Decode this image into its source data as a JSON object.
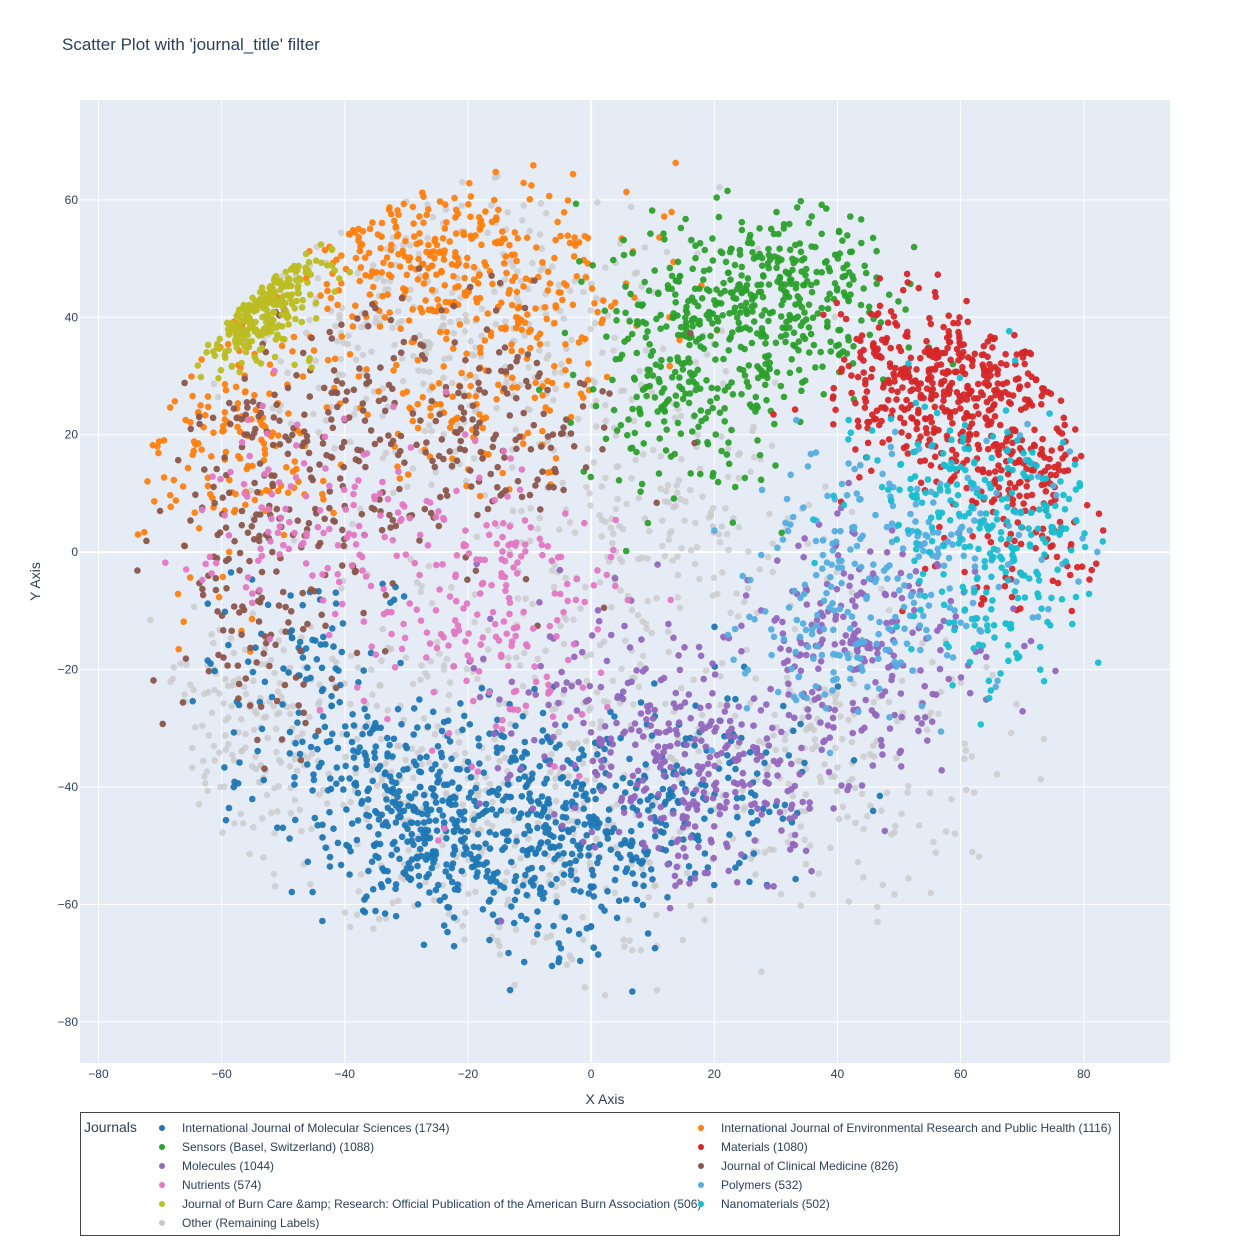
{
  "chart_data": {
    "type": "scatter",
    "title": "Scatter Plot with 'journal_title' filter",
    "xlabel": "X Axis",
    "ylabel": "Y Axis",
    "xlim": [
      -83,
      94
    ],
    "ylim": [
      -87,
      77
    ],
    "x_ticks": [
      -80,
      -60,
      -40,
      -20,
      0,
      20,
      40,
      60,
      80
    ],
    "y_ticks": [
      -80,
      -60,
      -40,
      -20,
      0,
      20,
      40,
      60
    ],
    "grid": true,
    "legend_title": "Journals",
    "legend_position": "bottom",
    "series": [
      {
        "name": "International Journal of Molecular Sciences (1734)",
        "color": "#1f77b4",
        "count": 1734,
        "clusters": [
          [
            -28,
            -45,
            11,
            9,
            0.45
          ],
          [
            -5,
            -48,
            10,
            10,
            0.3
          ],
          [
            15,
            -40,
            12,
            9,
            0.15
          ],
          [
            -45,
            -22,
            8,
            10,
            0.1
          ]
        ]
      },
      {
        "name": "International Journal of Environmental Research and Public Health (1116)",
        "color": "#ff7f0e",
        "count": 1116,
        "clusters": [
          [
            -30,
            52,
            10,
            8,
            0.35
          ],
          [
            -10,
            45,
            12,
            10,
            0.25
          ],
          [
            -58,
            20,
            8,
            12,
            0.25
          ],
          [
            -20,
            25,
            10,
            8,
            0.15
          ]
        ]
      },
      {
        "name": "Sensors (Basel, Switzerland) (1088)",
        "color": "#2ca02c",
        "count": 1088,
        "clusters": [
          [
            25,
            40,
            11,
            9,
            0.6
          ],
          [
            15,
            25,
            8,
            8,
            0.25
          ],
          [
            35,
            48,
            8,
            6,
            0.15
          ]
        ]
      },
      {
        "name": "Materials (1080)",
        "color": "#d62728",
        "count": 1080,
        "clusters": [
          [
            62,
            28,
            8,
            8,
            0.5
          ],
          [
            70,
            10,
            8,
            10,
            0.3
          ],
          [
            50,
            30,
            7,
            7,
            0.2
          ]
        ]
      },
      {
        "name": "Molecules (1044)",
        "color": "#9467bd",
        "count": 1044,
        "clusters": [
          [
            20,
            -35,
            12,
            10,
            0.5
          ],
          [
            45,
            -15,
            10,
            10,
            0.35
          ],
          [
            0,
            -25,
            10,
            10,
            0.15
          ]
        ]
      },
      {
        "name": "Journal of Clinical Medicine (826)",
        "color": "#8c564b",
        "count": 826,
        "clusters": [
          [
            -40,
            20,
            16,
            14,
            0.55
          ],
          [
            -55,
            -8,
            8,
            12,
            0.25
          ],
          [
            -15,
            20,
            10,
            10,
            0.2
          ]
        ]
      },
      {
        "name": "Nutrients (574)",
        "color": "#e377c2",
        "count": 574,
        "clusters": [
          [
            -15,
            -10,
            10,
            12,
            0.6
          ],
          [
            -45,
            5,
            10,
            8,
            0.4
          ]
        ]
      },
      {
        "name": "Polymers (532)",
        "color": "#55aee0",
        "count": 532,
        "clusters": [
          [
            52,
            0,
            12,
            10,
            0.7
          ],
          [
            40,
            -18,
            8,
            8,
            0.3
          ]
        ]
      },
      {
        "name": "Journal of Burn Care &amp; Research: Official Publication of the American Burn Association (506)",
        "color": "#bcbd22",
        "count": 506,
        "clusters": [
          [
            -60,
            44,
            6,
            5,
            0.9
          ],
          [
            -48,
            50,
            4,
            3,
            0.1
          ]
        ]
      },
      {
        "name": "Nanomaterials (502)",
        "color": "#17becf",
        "count": 502,
        "clusters": [
          [
            68,
            0,
            8,
            12,
            0.7
          ],
          [
            55,
            10,
            8,
            8,
            0.3
          ]
        ]
      },
      {
        "name": "Other (Remaining Labels)",
        "color": "#c8c8c8",
        "count": 2400,
        "clusters": [
          [
            -15,
            -40,
            22,
            18,
            0.35
          ],
          [
            -20,
            40,
            20,
            14,
            0.25
          ],
          [
            10,
            5,
            14,
            12,
            0.15
          ],
          [
            40,
            -35,
            14,
            12,
            0.15
          ],
          [
            -55,
            -30,
            8,
            10,
            0.1
          ]
        ]
      }
    ]
  },
  "legend_layout": {
    "columns": [
      [
        "International Journal of Molecular Sciences (1734)",
        "Sensors (Basel, Switzerland) (1088)",
        "Molecules (1044)",
        "Nutrients (574)",
        "Journal of Burn Care &amp; Research: Official Publication of the American Burn Association (506)",
        "Other (Remaining Labels)"
      ],
      [
        "International Journal of Environmental Research and Public Health (1116)",
        "Materials (1080)",
        "Journal of Clinical Medicine (826)",
        "Polymers (532)",
        "Nanomaterials (502)"
      ]
    ]
  }
}
